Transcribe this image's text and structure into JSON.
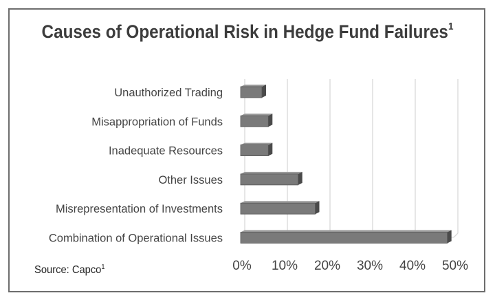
{
  "chart_data": {
    "type": "bar",
    "orientation": "horizontal",
    "title": "Causes of Operational Risk in Hedge Fund Failures",
    "title_superscript": "1",
    "categories": [
      "Unauthorized Trading",
      "Misappropriation of Funds",
      "Inadequate Resources",
      "Other Issues",
      "Misrepresentation of Investments",
      "Combination of Operational Issues"
    ],
    "values": [
      5,
      6.5,
      6.5,
      13.5,
      17.5,
      48.5
    ],
    "value_unit": "%",
    "xlim": [
      0,
      50
    ],
    "xticks": [
      0,
      10,
      20,
      30,
      40,
      50
    ],
    "xtick_labels": [
      "0%",
      "10%",
      "20%",
      "30%",
      "40%",
      "50%"
    ],
    "xlabel": "",
    "ylabel": "",
    "grid": true,
    "legend": "none",
    "colors": {
      "bar": "#7a7a7a",
      "bar_shadow": "#4a4a4a",
      "grid": "#d9d9d9",
      "text": "#444444",
      "frame": "#6d6d6d"
    }
  },
  "source": {
    "text": "Source: Capco",
    "superscript": "1"
  }
}
